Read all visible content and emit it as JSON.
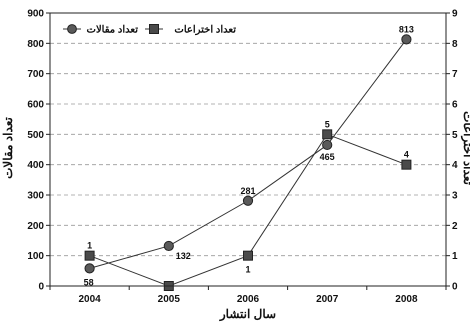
{
  "chart_data": {
    "type": "line",
    "categories": [
      "2004",
      "2005",
      "2006",
      "2007",
      "2008"
    ],
    "xlabel": "سال انتشار",
    "ylabel_left": "تعداد مقالات",
    "ylabel_right": "تعداد اختراعات",
    "ylim_left": [
      0,
      900
    ],
    "ylim_right": [
      0,
      9
    ],
    "yticks_left": [
      "0",
      "100",
      "200",
      "300",
      "400",
      "500",
      "600",
      "700",
      "800",
      "900"
    ],
    "yticks_right": [
      "0",
      "1",
      "2",
      "3",
      "4",
      "5",
      "6",
      "7",
      "8",
      "9"
    ],
    "grid": "horizontal dashed",
    "legend_position": "top-left",
    "series": [
      {
        "name": "تعداد مقالات",
        "axis": "left",
        "marker": "circle",
        "color": "#555555",
        "values": [
          58,
          132,
          281,
          465,
          813
        ],
        "labels": [
          "58",
          "132",
          "281",
          "465",
          "813"
        ]
      },
      {
        "name": "تعداد اختراعات",
        "axis": "right",
        "marker": "square",
        "color": "#444444",
        "values": [
          1,
          0,
          1,
          5,
          4
        ],
        "labels": [
          "1",
          "",
          "1",
          "5",
          "4"
        ]
      }
    ]
  }
}
